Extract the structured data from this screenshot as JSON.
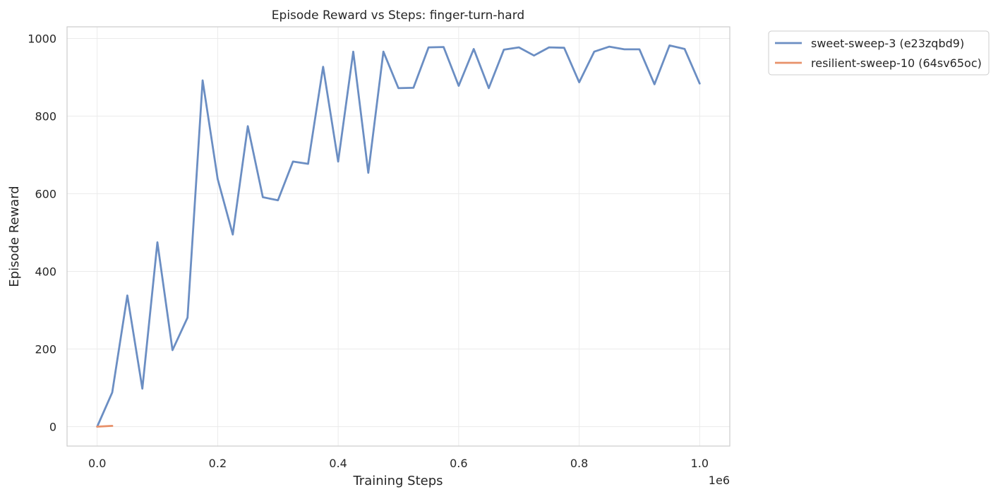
{
  "chart_data": {
    "type": "line",
    "title": "Episode Reward vs Steps: finger-turn-hard",
    "xlabel": "Training Steps",
    "ylabel": "Episode Reward",
    "x_offset_label": "1e6",
    "xlim": [
      -0.05,
      1.05
    ],
    "ylim": [
      -50,
      1030
    ],
    "x_ticks": [
      0.0,
      0.2,
      0.4,
      0.6,
      0.8,
      1.0
    ],
    "x_tick_labels": [
      "0.0",
      "0.2",
      "0.4",
      "0.6",
      "0.8",
      "1.0"
    ],
    "y_ticks": [
      0,
      200,
      400,
      600,
      800,
      1000
    ],
    "y_tick_labels": [
      "0",
      "200",
      "400",
      "600",
      "800",
      "1000"
    ],
    "grid": true,
    "legend_position": "outside-top-right",
    "series": [
      {
        "name": "sweet-sweep-3 (e23zqbd9)",
        "color": "#6b8ec3",
        "x": [
          0.0,
          0.025,
          0.05,
          0.075,
          0.1,
          0.125,
          0.15,
          0.175,
          0.2,
          0.225,
          0.25,
          0.275,
          0.3,
          0.325,
          0.35,
          0.375,
          0.4,
          0.425,
          0.45,
          0.475,
          0.5,
          0.525,
          0.55,
          0.575,
          0.6,
          0.625,
          0.65,
          0.675,
          0.7,
          0.725,
          0.75,
          0.775,
          0.8,
          0.825,
          0.85,
          0.875,
          0.9,
          0.925,
          0.95,
          0.975,
          1.0
        ],
        "y": [
          0,
          88,
          338,
          98,
          475,
          197,
          281,
          892,
          638,
          495,
          774,
          591,
          583,
          683,
          677,
          927,
          683,
          966,
          654,
          966,
          872,
          873,
          977,
          978,
          878,
          973,
          872,
          971,
          977,
          956,
          977,
          976,
          887,
          966,
          979,
          972,
          972,
          882,
          982,
          973,
          884
        ]
      },
      {
        "name": "resilient-sweep-10 (64sv65oc)",
        "color": "#e8916a",
        "x": [
          0.0,
          0.025
        ],
        "y": [
          0,
          2
        ]
      }
    ]
  }
}
